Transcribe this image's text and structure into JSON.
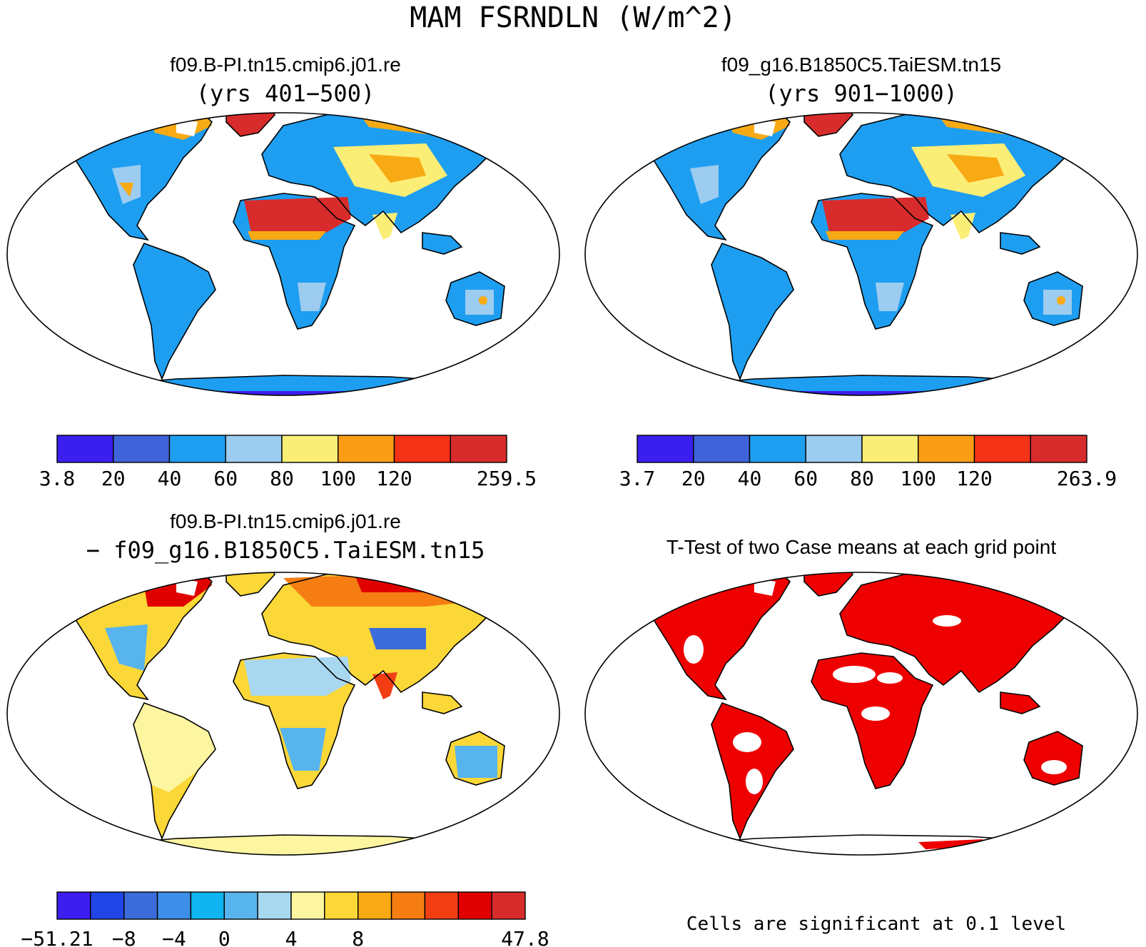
{
  "title": "MAM FSRNDLN (W/m^2)",
  "panels": [
    {
      "title": "f09.B-PI.tn15.cmip6.j01.re",
      "subtitle": "(yrs 401−500)"
    },
    {
      "title": "f09_g16.B1850C5.TaiESM.tn15",
      "subtitle": "(yrs 901−1000)"
    },
    {
      "title": "f09.B-PI.tn15.cmip6.j01.re",
      "subtitle": "− f09_g16.B1850C5.TaiESM.tn15"
    },
    {
      "title": "T-Test of two Case means at each grid point",
      "subtitle": ""
    }
  ],
  "colorbars": [
    {
      "labels": [
        "3.8",
        "20",
        "40",
        "60",
        "80",
        "100",
        "120",
        "259.5"
      ],
      "colors": [
        "#3b1ff0",
        "#3e63d8",
        "#1e9ef0",
        "#9cccf0",
        "#fbee77",
        "#fb9e16",
        "#f43216",
        "#d82c2c"
      ]
    },
    {
      "labels": [
        "3.7",
        "20",
        "40",
        "60",
        "80",
        "100",
        "120",
        "263.9"
      ],
      "colors": [
        "#3b1ff0",
        "#3e63d8",
        "#1e9ef0",
        "#9cccf0",
        "#fbee77",
        "#fb9e16",
        "#f43216",
        "#d82c2c"
      ]
    },
    {
      "labels": [
        "−51.21",
        "−8",
        "−4",
        "0",
        "4",
        "8",
        "47.8"
      ],
      "colors": [
        "#3c1ff0",
        "#2146e8",
        "#3b6cda",
        "#3c8ee8",
        "#0fb4f0",
        "#58b4ec",
        "#a8d8f0",
        "#fdf5a0",
        "#fbd738",
        "#f8aa15",
        "#f57d12",
        "#f33e14",
        "#e00000",
        "#d82c2c"
      ]
    }
  ],
  "significance_note": "Cells are significant at 0.1 level"
}
